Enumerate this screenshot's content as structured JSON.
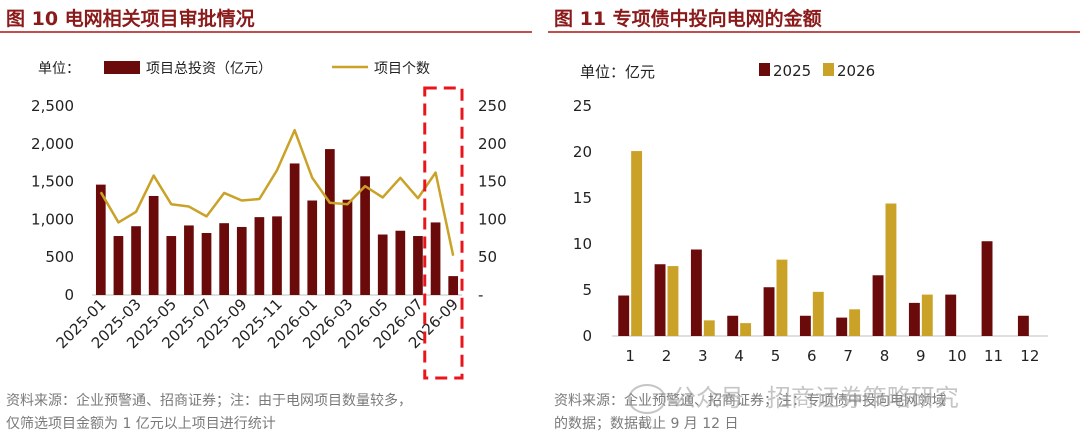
{
  "colors": {
    "dark_red": "#6b0a0a",
    "gold": "#c9a227",
    "title_red": "#8b1a1a",
    "highlight": "#e8161b"
  },
  "left": {
    "title": "图 10  电网相关项目审批情况",
    "source_line1": "资料来源：企业预警通、招商证券；注：由于电网项目数量较多，",
    "source_line2": "仅筛选项目金额为 1 亿元以上项目进行统计"
  },
  "right": {
    "title": "图 11  专项债中投向电网的金额",
    "source_line1": "资料来源：企业预警通、招商证券；注：专项债中投向电网领域",
    "source_line2": "的数据；数据截止 9 月 12 日"
  },
  "watermark": {
    "text": "公众号 · 招商证券策略研究"
  },
  "chart_data": [
    {
      "type": "bar",
      "unit_label": "单位：",
      "categories": [
        "2025-01",
        "2025-02",
        "2025-03",
        "2025-04",
        "2025-05",
        "2025-06",
        "2025-07",
        "2025-08",
        "2025-09",
        "2025-10",
        "2025-11",
        "2025-12",
        "2026-01",
        "2026-02",
        "2026-03",
        "2026-04",
        "2026-05",
        "2026-06",
        "2026-07",
        "2026-08",
        "2026-09"
      ],
      "tick_labels": [
        "2025-01",
        "2025-03",
        "2025-05",
        "2025-07",
        "2025-09",
        "2025-11",
        "2026-01",
        "2026-03",
        "2026-05",
        "2026-07",
        "2026-09"
      ],
      "series": [
        {
          "name": "项目总投资（亿元）",
          "axis": "left",
          "type": "bar",
          "values": [
            1460,
            780,
            910,
            1310,
            780,
            920,
            820,
            950,
            900,
            1030,
            1040,
            1740,
            1250,
            1930,
            1260,
            1570,
            800,
            850,
            780,
            960,
            250
          ]
        },
        {
          "name": "项目个数",
          "axis": "right",
          "type": "line",
          "values": [
            136,
            96,
            110,
            158,
            120,
            117,
            104,
            135,
            125,
            127,
            165,
            218,
            155,
            122,
            120,
            144,
            129,
            155,
            128,
            162,
            52
          ]
        }
      ],
      "y_left": {
        "min": 0,
        "max": 2500,
        "ticks": [
          0,
          500,
          1000,
          1500,
          2000,
          2500
        ],
        "tick_labels": [
          "0",
          "500",
          "1,000",
          "1,500",
          "2,000",
          "2,500"
        ]
      },
      "y_right": {
        "min": 0,
        "max": 250,
        "ticks": [
          0,
          50,
          100,
          150,
          200,
          250
        ],
        "tick_labels": [
          "-",
          "50",
          "100",
          "150",
          "200",
          "250"
        ]
      },
      "highlight_categories": [
        "2026-08",
        "2026-09"
      ],
      "grid": false,
      "legend": "top"
    },
    {
      "type": "bar",
      "unit_label": "单位：亿元",
      "categories": [
        "1",
        "2",
        "3",
        "4",
        "5",
        "6",
        "7",
        "8",
        "9",
        "10",
        "11",
        "12"
      ],
      "series": [
        {
          "name": "2025",
          "values": [
            4.4,
            7.8,
            9.4,
            2.2,
            5.3,
            2.2,
            2.0,
            6.6,
            3.6,
            4.5,
            10.3,
            2.2
          ]
        },
        {
          "name": "2026",
          "values": [
            20.1,
            7.6,
            1.7,
            1.4,
            8.3,
            4.8,
            2.9,
            14.4,
            4.5,
            0,
            0,
            0
          ]
        }
      ],
      "y": {
        "min": 0,
        "max": 25,
        "ticks": [
          0,
          5,
          10,
          15,
          20,
          25
        ],
        "tick_labels": [
          "0",
          "5",
          "10",
          "15",
          "20",
          "25"
        ]
      },
      "grid": false,
      "legend": "top"
    }
  ]
}
